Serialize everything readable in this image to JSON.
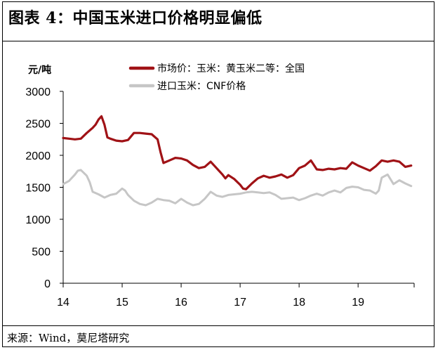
{
  "figure": {
    "title": "图表 4：中国玉米进口价格明显偏低",
    "source": "来源：Wind，莫尼塔研究"
  },
  "chart_data": {
    "type": "line",
    "ylabel": "元/吨",
    "ylim": [
      0,
      3000
    ],
    "yticks": [
      "0",
      "500",
      "1000",
      "1500",
      "2000",
      "2500",
      "3000"
    ],
    "xlim": [
      14,
      19.95
    ],
    "xticks": [
      "14",
      "15",
      "16",
      "17",
      "18",
      "19"
    ],
    "grid": false,
    "legend_position": "top",
    "series": [
      {
        "name": "市场价：玉米：黄玉米二等：全国",
        "color": "#a01216",
        "x": [
          14.0,
          14.1,
          14.2,
          14.3,
          14.4,
          14.5,
          14.55,
          14.6,
          14.65,
          14.7,
          14.75,
          14.8,
          14.9,
          15.0,
          15.1,
          15.2,
          15.3,
          15.4,
          15.5,
          15.6,
          15.65,
          15.7,
          15.8,
          15.9,
          16.0,
          16.1,
          16.2,
          16.3,
          16.4,
          16.5,
          16.6,
          16.7,
          16.75,
          16.8,
          16.9,
          17.0,
          17.05,
          17.1,
          17.2,
          17.3,
          17.4,
          17.5,
          17.6,
          17.7,
          17.8,
          17.9,
          18.0,
          18.1,
          18.2,
          18.3,
          18.4,
          18.5,
          18.6,
          18.7,
          18.8,
          18.9,
          19.0,
          19.1,
          19.2,
          19.3,
          19.4,
          19.5,
          19.6,
          19.7,
          19.8,
          19.9
        ],
        "y": [
          2270,
          2260,
          2250,
          2260,
          2350,
          2430,
          2480,
          2560,
          2610,
          2480,
          2280,
          2260,
          2230,
          2220,
          2240,
          2350,
          2350,
          2340,
          2330,
          2250,
          2050,
          1880,
          1920,
          1960,
          1950,
          1920,
          1850,
          1800,
          1820,
          1900,
          1800,
          1700,
          1640,
          1690,
          1630,
          1540,
          1480,
          1470,
          1560,
          1640,
          1680,
          1650,
          1670,
          1700,
          1650,
          1690,
          1800,
          1840,
          1920,
          1780,
          1770,
          1790,
          1780,
          1800,
          1790,
          1890,
          1840,
          1800,
          1760,
          1830,
          1920,
          1900,
          1920,
          1900,
          1820,
          1840
        ]
      },
      {
        "name": "进口玉米：CNF价格",
        "color": "#c6c6c6",
        "x": [
          14.0,
          14.1,
          14.2,
          14.25,
          14.3,
          14.4,
          14.45,
          14.5,
          14.6,
          14.7,
          14.8,
          14.9,
          15.0,
          15.05,
          15.1,
          15.2,
          15.3,
          15.4,
          15.5,
          15.6,
          15.7,
          15.8,
          15.9,
          16.0,
          16.1,
          16.2,
          16.3,
          16.4,
          16.5,
          16.6,
          16.7,
          16.8,
          16.9,
          17.0,
          17.1,
          17.2,
          17.3,
          17.4,
          17.5,
          17.6,
          17.7,
          17.8,
          17.9,
          18.0,
          18.1,
          18.2,
          18.3,
          18.4,
          18.5,
          18.6,
          18.7,
          18.8,
          18.9,
          19.0,
          19.1,
          19.2,
          19.3,
          19.35,
          19.4,
          19.5,
          19.6,
          19.7,
          19.8,
          19.9
        ],
        "y": [
          1550,
          1600,
          1700,
          1760,
          1770,
          1680,
          1580,
          1430,
          1390,
          1340,
          1380,
          1400,
          1480,
          1450,
          1380,
          1290,
          1240,
          1220,
          1260,
          1320,
          1300,
          1290,
          1250,
          1320,
          1260,
          1220,
          1240,
          1320,
          1430,
          1370,
          1350,
          1380,
          1390,
          1400,
          1420,
          1430,
          1420,
          1410,
          1420,
          1380,
          1320,
          1330,
          1340,
          1300,
          1330,
          1370,
          1400,
          1370,
          1420,
          1450,
          1420,
          1490,
          1510,
          1500,
          1460,
          1450,
          1400,
          1450,
          1650,
          1700,
          1550,
          1610,
          1560,
          1520
        ]
      }
    ]
  }
}
